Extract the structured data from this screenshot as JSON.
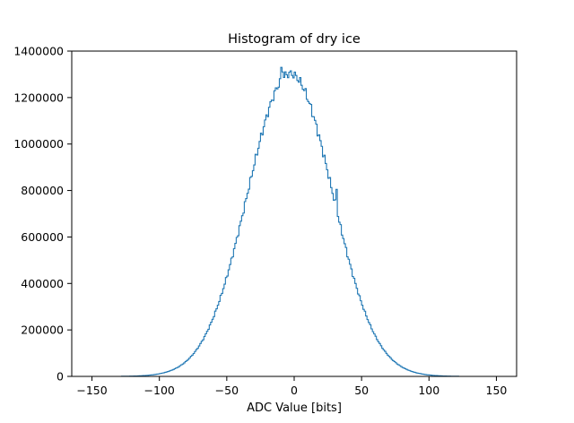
{
  "chart_data": {
    "type": "histogram",
    "title": "Histogram of dry ice",
    "xlabel": "ADC Value [bits]",
    "ylabel": "",
    "xlim": [
      -165,
      165
    ],
    "ylim": [
      0,
      1400000
    ],
    "xticks": [
      -150,
      -100,
      -50,
      0,
      50,
      100,
      150
    ],
    "yticks": [
      0,
      200000,
      400000,
      600000,
      800000,
      1000000,
      1200000,
      1400000
    ],
    "xtick_labels": [
      "−150",
      "−100",
      "−50",
      "0",
      "50",
      "100",
      "150"
    ],
    "ytick_labels": [
      "0",
      "200000",
      "400000",
      "600000",
      "800000",
      "1000000",
      "1200000",
      "1400000"
    ],
    "grid": false,
    "legend": "none",
    "color": "#1f77b4",
    "bin_width": 1,
    "bin_range": [
      -150,
      150
    ],
    "distribution": "approximately normal",
    "mean": -3,
    "std_dev": 31.5,
    "peak": 1330000,
    "peak_at": -9,
    "sample_points": [
      {
        "x": -150,
        "y": 0
      },
      {
        "x": -110,
        "y": 5000
      },
      {
        "x": -100,
        "y": 18000
      },
      {
        "x": -90,
        "y": 60000
      },
      {
        "x": -80,
        "y": 140000
      },
      {
        "x": -70,
        "y": 260000
      },
      {
        "x": -60,
        "y": 420000
      },
      {
        "x": -50,
        "y": 600000
      },
      {
        "x": -40,
        "y": 780000
      },
      {
        "x": -30,
        "y": 930000
      },
      {
        "x": -20,
        "y": 1130000
      },
      {
        "x": -10,
        "y": 1280000
      },
      {
        "x": -9,
        "y": 1330000
      },
      {
        "x": 0,
        "y": 1305000
      },
      {
        "x": 10,
        "y": 1220000
      },
      {
        "x": 20,
        "y": 1060000
      },
      {
        "x": 30,
        "y": 800000
      },
      {
        "x": 32,
        "y": 805000
      },
      {
        "x": 40,
        "y": 560000
      },
      {
        "x": 50,
        "y": 390000
      },
      {
        "x": 60,
        "y": 220000
      },
      {
        "x": 70,
        "y": 115000
      },
      {
        "x": 80,
        "y": 50000
      },
      {
        "x": 90,
        "y": 20000
      },
      {
        "x": 100,
        "y": 6000
      },
      {
        "x": 110,
        "y": 1000
      },
      {
        "x": 150,
        "y": 0
      }
    ]
  }
}
